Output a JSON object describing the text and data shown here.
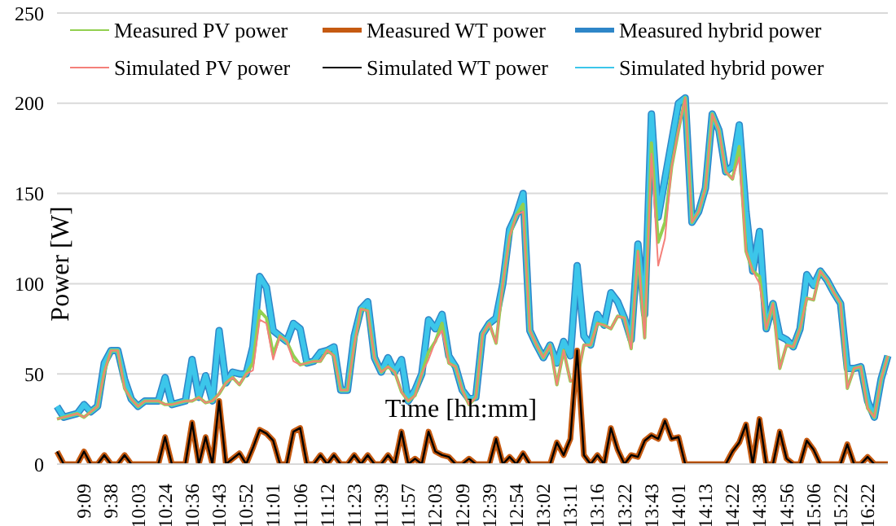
{
  "chart_data": {
    "type": "line",
    "xlabel": "Time [hh:mm]",
    "ylabel": "Power [W]",
    "categories": [
      null,
      null,
      null,
      null,
      "9:09",
      null,
      null,
      null,
      "9:38",
      null,
      null,
      null,
      "10:03",
      null,
      null,
      null,
      "10:24",
      null,
      null,
      null,
      "10:36",
      null,
      null,
      null,
      "10:43",
      null,
      null,
      null,
      "10:52",
      null,
      null,
      null,
      "11:01",
      null,
      null,
      null,
      "11:06",
      null,
      null,
      null,
      "11:12",
      null,
      null,
      null,
      "11:23",
      null,
      null,
      null,
      "11:39",
      null,
      null,
      null,
      "11:57",
      null,
      null,
      null,
      "12:03",
      null,
      null,
      null,
      "12:09",
      null,
      null,
      null,
      "12:39",
      null,
      null,
      null,
      "12:54",
      null,
      null,
      null,
      "13:02",
      null,
      null,
      null,
      "13:11",
      null,
      null,
      null,
      "13:16",
      null,
      null,
      null,
      "13:22",
      null,
      null,
      null,
      "13:43",
      null,
      null,
      null,
      "14:01",
      null,
      null,
      null,
      "14:13",
      null,
      null,
      null,
      "14:22",
      null,
      null,
      null,
      "14:38",
      null,
      null,
      null,
      "14:56",
      null,
      null,
      null,
      "15:06",
      null,
      null,
      null,
      "15:22",
      null,
      null,
      null,
      "16:22",
      null,
      null,
      null
    ],
    "series": [
      {
        "name": "Measured PV power",
        "color": "#92d050",
        "values": [
          25,
          26,
          27,
          28,
          26,
          29,
          32,
          51,
          63,
          63,
          42,
          36,
          32,
          35,
          35,
          35,
          33,
          33,
          34,
          35,
          35,
          37,
          34,
          35,
          39,
          45,
          48,
          44,
          50,
          56,
          85,
          81,
          61,
          71,
          68,
          60,
          55,
          56,
          57,
          57,
          63,
          60,
          41,
          41,
          66,
          86,
          85,
          59,
          51,
          54,
          51,
          40,
          35,
          38,
          50,
          62,
          68,
          78,
          56,
          54,
          41,
          33,
          37,
          72,
          78,
          67,
          100,
          126,
          138,
          144,
          74,
          66,
          59,
          66,
          44,
          63,
          46,
          47,
          66,
          66,
          78,
          77,
          75,
          82,
          81,
          64,
          118,
          70,
          178,
          123,
          134,
          165,
          185,
          203,
          134,
          140,
          153,
          194,
          185,
          162,
          158,
          176,
          118,
          107,
          104,
          75,
          89,
          53,
          66,
          65,
          75,
          92,
          91,
          107,
          102,
          95,
          89,
          42,
          53,
          54,
          31,
          26,
          47,
          60
        ]
      },
      {
        "name": "Measured WT power",
        "color": "#c55a11",
        "values": [
          7,
          0,
          0,
          0,
          7,
          0,
          0,
          5,
          0,
          0,
          5,
          0,
          0,
          0,
          0,
          0,
          15,
          0,
          0,
          0,
          23,
          0,
          15,
          0,
          35,
          0,
          3,
          6,
          0,
          9,
          19,
          17,
          13,
          0,
          0,
          18,
          20,
          0,
          0,
          5,
          0,
          5,
          0,
          0,
          5,
          0,
          5,
          0,
          0,
          5,
          0,
          18,
          0,
          3,
          0,
          18,
          7,
          5,
          4,
          0,
          0,
          3,
          0,
          0,
          0,
          14,
          0,
          4,
          0,
          6,
          0,
          0,
          0,
          0,
          12,
          5,
          14,
          63,
          5,
          0,
          5,
          0,
          20,
          8,
          0,
          5,
          4,
          13,
          16,
          14,
          24,
          14,
          15,
          0,
          0,
          0,
          0,
          0,
          0,
          0,
          7,
          12,
          22,
          0,
          25,
          0,
          0,
          18,
          3,
          0,
          0,
          13,
          8,
          0,
          0,
          0,
          0,
          11,
          0,
          0,
          4,
          0,
          0,
          0
        ]
      },
      {
        "name": "Measured hybrid power",
        "color": "#2e86c8",
        "values": [
          32,
          26,
          27,
          28,
          33,
          29,
          32,
          56,
          63,
          63,
          47,
          36,
          32,
          35,
          35,
          35,
          48,
          33,
          34,
          35,
          58,
          37,
          49,
          35,
          74,
          45,
          51,
          50,
          50,
          65,
          104,
          98,
          74,
          71,
          68,
          78,
          75,
          56,
          57,
          62,
          63,
          65,
          41,
          41,
          71,
          86,
          90,
          59,
          51,
          59,
          51,
          58,
          35,
          41,
          50,
          80,
          75,
          83,
          60,
          54,
          41,
          36,
          37,
          72,
          78,
          81,
          100,
          130,
          138,
          150,
          74,
          66,
          59,
          66,
          56,
          68,
          60,
          110,
          71,
          66,
          83,
          77,
          95,
          90,
          81,
          69,
          122,
          83,
          194,
          137,
          158,
          179,
          200,
          203,
          134,
          140,
          153,
          194,
          185,
          162,
          165,
          188,
          140,
          107,
          129,
          75,
          89,
          71,
          69,
          65,
          75,
          105,
          99,
          107,
          102,
          95,
          89,
          53,
          53,
          54,
          35,
          26,
          47,
          60
        ]
      },
      {
        "name": "Simulated PV power",
        "color": "#f4807a",
        "values": [
          25,
          26,
          27,
          28,
          26,
          29,
          32,
          51,
          63,
          63,
          42,
          36,
          32,
          35,
          35,
          35,
          33,
          33,
          34,
          35,
          35,
          37,
          34,
          35,
          39,
          45,
          48,
          44,
          50,
          52,
          80,
          78,
          58,
          71,
          68,
          57,
          55,
          56,
          57,
          57,
          63,
          60,
          41,
          41,
          66,
          86,
          85,
          59,
          51,
          54,
          51,
          40,
          35,
          38,
          50,
          58,
          68,
          74,
          56,
          54,
          41,
          33,
          37,
          72,
          78,
          67,
          100,
          126,
          138,
          140,
          74,
          66,
          59,
          66,
          44,
          63,
          46,
          47,
          66,
          66,
          78,
          77,
          75,
          82,
          81,
          64,
          118,
          70,
          172,
          110,
          125,
          165,
          185,
          203,
          134,
          140,
          153,
          194,
          185,
          162,
          158,
          170,
          118,
          107,
          100,
          75,
          89,
          53,
          66,
          65,
          75,
          92,
          91,
          107,
          102,
          95,
          89,
          42,
          53,
          54,
          31,
          26,
          47,
          60
        ]
      },
      {
        "name": "Simulated WT power",
        "color": "#000000",
        "values": [
          7,
          0,
          0,
          0,
          7,
          0,
          0,
          5,
          0,
          0,
          5,
          0,
          0,
          0,
          0,
          0,
          15,
          0,
          0,
          0,
          23,
          0,
          15,
          0,
          35,
          0,
          3,
          6,
          0,
          9,
          19,
          17,
          13,
          0,
          0,
          18,
          20,
          0,
          0,
          5,
          0,
          5,
          0,
          0,
          5,
          0,
          5,
          0,
          0,
          5,
          0,
          18,
          0,
          3,
          0,
          18,
          7,
          5,
          4,
          0,
          0,
          3,
          0,
          0,
          0,
          14,
          0,
          4,
          0,
          6,
          0,
          0,
          0,
          0,
          12,
          5,
          14,
          63,
          5,
          0,
          5,
          0,
          20,
          8,
          0,
          5,
          4,
          13,
          16,
          14,
          24,
          14,
          15,
          0,
          0,
          0,
          0,
          0,
          0,
          0,
          7,
          12,
          22,
          0,
          25,
          0,
          0,
          18,
          3,
          0,
          0,
          13,
          8,
          0,
          0,
          0,
          0,
          11,
          0,
          0,
          4,
          0,
          0,
          0
        ]
      },
      {
        "name": "Simulated hybrid power",
        "color": "#3cc6ea",
        "values": [
          32,
          26,
          27,
          28,
          33,
          29,
          32,
          56,
          63,
          63,
          47,
          36,
          32,
          35,
          35,
          35,
          48,
          33,
          34,
          35,
          58,
          37,
          49,
          35,
          74,
          45,
          51,
          50,
          50,
          65,
          104,
          98,
          74,
          71,
          68,
          78,
          75,
          56,
          57,
          62,
          63,
          65,
          41,
          41,
          71,
          86,
          90,
          59,
          51,
          59,
          51,
          58,
          35,
          41,
          50,
          80,
          75,
          83,
          60,
          54,
          41,
          36,
          37,
          72,
          78,
          81,
          100,
          130,
          138,
          150,
          74,
          66,
          59,
          66,
          56,
          68,
          60,
          110,
          71,
          66,
          83,
          77,
          95,
          90,
          81,
          69,
          122,
          83,
          194,
          137,
          158,
          179,
          200,
          203,
          134,
          140,
          153,
          194,
          185,
          162,
          165,
          188,
          140,
          107,
          129,
          75,
          89,
          71,
          69,
          65,
          75,
          105,
          99,
          107,
          102,
          95,
          89,
          53,
          53,
          54,
          35,
          26,
          47,
          60
        ]
      }
    ],
    "ylim": [
      0,
      250
    ],
    "yticks": [
      0,
      50,
      100,
      150,
      200,
      250
    ],
    "grid": "y",
    "legend": "top",
    "marker": "none",
    "line_style": "solid"
  }
}
